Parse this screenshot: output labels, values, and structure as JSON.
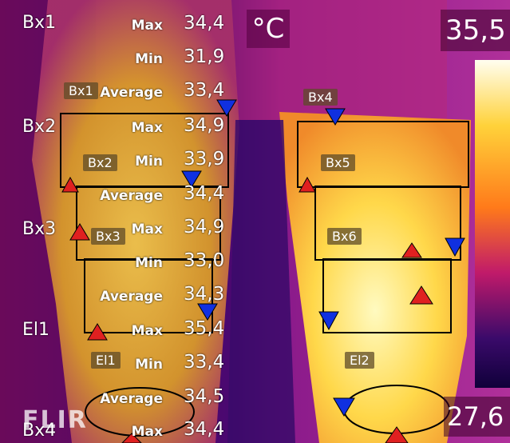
{
  "unit": "°C",
  "scale": {
    "max": "35,5",
    "min": "27,6",
    "bar_colors": [
      "#fffef0",
      "#ffd23a",
      "#ff7a1a",
      "#c01a6a",
      "#3a0a6a",
      "#10003a"
    ]
  },
  "logo": "FLIR",
  "measurements": [
    {
      "label": "Bx1",
      "rows": [
        {
          "key": "Max",
          "value": "34,4"
        },
        {
          "key": "Min",
          "value": "31,9"
        },
        {
          "key": "Average",
          "value": "33,4"
        }
      ]
    },
    {
      "label": "Bx2",
      "rows": [
        {
          "key": "Max",
          "value": "34,9"
        },
        {
          "key": "Min",
          "value": "33,9"
        },
        {
          "key": "Average",
          "value": "34,4"
        }
      ]
    },
    {
      "label": "Bx3",
      "rows": [
        {
          "key": "Max",
          "value": "34,9"
        },
        {
          "key": "Min",
          "value": "33,0"
        },
        {
          "key": "Average",
          "value": "34,3"
        }
      ]
    },
    {
      "label": "El1",
      "rows": [
        {
          "key": "Max",
          "value": "35,4"
        },
        {
          "key": "Min",
          "value": "33,4"
        },
        {
          "key": "Average",
          "value": "34,5"
        }
      ]
    },
    {
      "label": "Bx4",
      "rows": [
        {
          "key": "Max",
          "value": "34,4"
        }
      ]
    }
  ],
  "region_tags": [
    "Bx1",
    "Bx2",
    "Bx3",
    "El1",
    "Bx4",
    "Bx5",
    "Bx6",
    "El2"
  ]
}
